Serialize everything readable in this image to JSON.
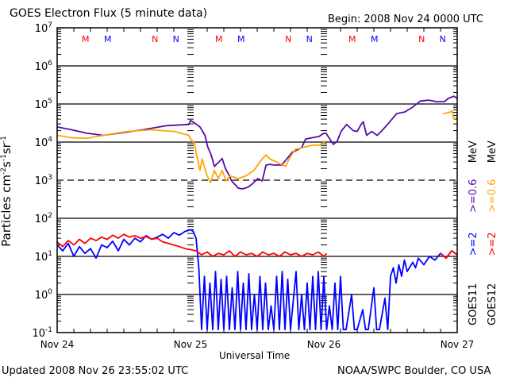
{
  "header": {
    "title": "GOES Electron Flux (5 minute data)",
    "begin": "Begin: 2008 Nov 24 0000 UTC"
  },
  "footer": {
    "updated": "Updated 2008 Nov 26 23:55:02 UTC",
    "credit": "NOAA/SWPC Boulder, CO USA"
  },
  "legend": {
    "goes11": {
      "name": "GOES11",
      "e2": ">=2",
      "e06": ">=0.6",
      "unit": "MeV"
    },
    "goes12": {
      "name": "GOES12",
      "e2": ">=2",
      "e06": ">=0.6",
      "unit": "MeV"
    }
  },
  "chart_data": {
    "type": "line",
    "title": "GOES Electron Flux (5 minute data)",
    "xlabel": "Universal Time",
    "ylabel": "Particles cm-2s-1sr-1",
    "yscale": "log",
    "ylim": [
      0.1,
      10000000
    ],
    "xlim_hours": [
      0,
      72
    ],
    "y_ticks": [
      {
        "base": "10",
        "exp": "7"
      },
      {
        "base": "10",
        "exp": "6"
      },
      {
        "base": "10",
        "exp": "5"
      },
      {
        "base": "10",
        "exp": "4"
      },
      {
        "base": "10",
        "exp": "3"
      },
      {
        "base": "10",
        "exp": "2"
      },
      {
        "base": "10",
        "exp": "1"
      },
      {
        "base": "10",
        "exp": "0"
      },
      {
        "base": "10",
        "exp": "-1"
      }
    ],
    "x_ticks": [
      {
        "hour": 0,
        "label": "Nov 24"
      },
      {
        "hour": 24,
        "label": "Nov 25"
      },
      {
        "hour": 48,
        "label": "Nov 26"
      },
      {
        "hour": 72,
        "label": "Nov 27"
      }
    ],
    "markers": [
      {
        "hour": 5.1,
        "label": "M",
        "color": "#ff0000"
      },
      {
        "hour": 9.1,
        "label": "M",
        "color": "#0000ff"
      },
      {
        "hour": 17.6,
        "label": "N",
        "color": "#ff0000"
      },
      {
        "hour": 21.4,
        "label": "N",
        "color": "#0000ff"
      },
      {
        "hour": 29.1,
        "label": "M",
        "color": "#ff0000"
      },
      {
        "hour": 33.1,
        "label": "M",
        "color": "#0000ff"
      },
      {
        "hour": 41.6,
        "label": "N",
        "color": "#ff0000"
      },
      {
        "hour": 45.4,
        "label": "N",
        "color": "#0000ff"
      },
      {
        "hour": 53.1,
        "label": "M",
        "color": "#ff0000"
      },
      {
        "hour": 57.1,
        "label": "M",
        "color": "#0000ff"
      },
      {
        "hour": 65.6,
        "label": "N",
        "color": "#ff0000"
      },
      {
        "hour": 69.4,
        "label": "N",
        "color": "#0000ff"
      }
    ],
    "series": [
      {
        "name": "GOES11 >=0.6 MeV",
        "color": "#5a0aa8",
        "points": [
          [
            0,
            25000
          ],
          [
            2.6,
            21000
          ],
          [
            5.4,
            17000
          ],
          [
            8.3,
            15000
          ],
          [
            11.1,
            17000
          ],
          [
            15.4,
            21000
          ],
          [
            19.7,
            27000
          ],
          [
            23.7,
            29000
          ],
          [
            24,
            37000
          ],
          [
            24.7,
            32000
          ],
          [
            25.7,
            25000
          ],
          [
            26.6,
            15000
          ],
          [
            27.1,
            7500
          ],
          [
            27.7,
            4700
          ],
          [
            28.3,
            2300
          ],
          [
            29,
            2900
          ],
          [
            29.7,
            3700
          ],
          [
            30.3,
            2000
          ],
          [
            30.9,
            1400
          ],
          [
            31.4,
            960
          ],
          [
            32.6,
            620
          ],
          [
            33.3,
            590
          ],
          [
            34.3,
            650
          ],
          [
            35.1,
            790
          ],
          [
            36.1,
            1100
          ],
          [
            36.9,
            960
          ],
          [
            37.6,
            2500
          ],
          [
            38.3,
            2600
          ],
          [
            39,
            2500
          ],
          [
            40.4,
            2500
          ],
          [
            41.4,
            3700
          ],
          [
            42.3,
            5400
          ],
          [
            42.9,
            5900
          ],
          [
            44,
            7100
          ],
          [
            44.7,
            12000
          ],
          [
            45.9,
            13000
          ],
          [
            47.1,
            14000
          ],
          [
            48,
            17000
          ],
          [
            48.4,
            17000
          ],
          [
            49.7,
            8700
          ],
          [
            50.4,
            10500
          ],
          [
            51.1,
            19000
          ],
          [
            52.1,
            29000
          ],
          [
            53.3,
            20000
          ],
          [
            54,
            19000
          ],
          [
            54.7,
            29000
          ],
          [
            55.1,
            34000
          ],
          [
            55.7,
            15000
          ],
          [
            56.6,
            19000
          ],
          [
            57.6,
            15000
          ],
          [
            58.6,
            21000
          ],
          [
            59.7,
            32000
          ],
          [
            61.1,
            56000
          ],
          [
            62.6,
            62000
          ],
          [
            64,
            83000
          ],
          [
            65.4,
            120000
          ],
          [
            66.9,
            126000
          ],
          [
            68.3,
            115000
          ],
          [
            69.7,
            115000
          ],
          [
            70.4,
            140000
          ],
          [
            71.4,
            160000
          ],
          [
            72,
            140000
          ]
        ]
      },
      {
        "name": "GOES12 >=0.6 MeV",
        "color": "#ffa500",
        "points": [
          [
            0,
            15000
          ],
          [
            2.6,
            13000
          ],
          [
            5.4,
            12600
          ],
          [
            8.3,
            15000
          ],
          [
            12.6,
            19000
          ],
          [
            16.9,
            21000
          ],
          [
            21.1,
            19000
          ],
          [
            23.7,
            15000
          ],
          [
            24,
            12000
          ],
          [
            24.7,
            9500
          ],
          [
            25.1,
            4600
          ],
          [
            25.7,
            1800
          ],
          [
            26.1,
            3600
          ],
          [
            26.9,
            1400
          ],
          [
            27.6,
            870
          ],
          [
            28.3,
            1800
          ],
          [
            29,
            1100
          ],
          [
            29.7,
            1800
          ],
          [
            30.4,
            960
          ],
          [
            31.1,
            1300
          ],
          [
            32.6,
            1100
          ],
          [
            34,
            1300
          ],
          [
            35.4,
            1800
          ],
          [
            36.9,
            3600
          ],
          [
            37.6,
            4600
          ],
          [
            38.3,
            3600
          ],
          [
            39.7,
            2900
          ],
          [
            41.1,
            2300
          ],
          [
            41.9,
            4000
          ],
          [
            42.9,
            6500
          ],
          [
            43.7,
            6800
          ],
          [
            44.7,
            7500
          ],
          [
            46.1,
            8300
          ],
          [
            47.6,
            8300
          ],
          [
            48.3,
            11000
          ],
          null,
          [
            69.4,
            56000
          ],
          [
            70.4,
            59000
          ],
          [
            71.1,
            65000
          ],
          [
            71.4,
            40000
          ],
          [
            72,
            44000
          ]
        ]
      },
      {
        "name": "GOES11 >=2 MeV",
        "color": "#0000ff",
        "points": [
          [
            0,
            20
          ],
          [
            1,
            14
          ],
          [
            2,
            22
          ],
          [
            3,
            10
          ],
          [
            4,
            18
          ],
          [
            5,
            12
          ],
          [
            6,
            16
          ],
          [
            7,
            9
          ],
          [
            8,
            20
          ],
          [
            9,
            17
          ],
          [
            10,
            25
          ],
          [
            11,
            14
          ],
          [
            12,
            28
          ],
          [
            13,
            20
          ],
          [
            14,
            30
          ],
          [
            15,
            24
          ],
          [
            16,
            35
          ],
          [
            17,
            28
          ],
          [
            18,
            32
          ],
          [
            19,
            38
          ],
          [
            20,
            30
          ],
          [
            21,
            42
          ],
          [
            22,
            36
          ],
          [
            23,
            45
          ],
          [
            24,
            50
          ],
          [
            24.5,
            45
          ],
          [
            25,
            30
          ],
          [
            25.5,
            5
          ],
          [
            26,
            0.12
          ],
          [
            26.5,
            3
          ],
          [
            27,
            0.12
          ],
          [
            27.5,
            2
          ],
          [
            28,
            0.12
          ],
          [
            28.5,
            4
          ],
          [
            29,
            0.12
          ],
          [
            29.5,
            2.5
          ],
          [
            30,
            0.12
          ],
          [
            30.5,
            3
          ],
          [
            31,
            0.12
          ],
          [
            31.5,
            1.5
          ],
          [
            32,
            0.12
          ],
          [
            32.5,
            4
          ],
          [
            33,
            0.12
          ],
          [
            33.5,
            2
          ],
          [
            34,
            0.12
          ],
          [
            34.5,
            3.5
          ],
          [
            35,
            0.12
          ],
          [
            35.5,
            1
          ],
          [
            36,
            0.12
          ],
          [
            36.5,
            3
          ],
          [
            37,
            0.12
          ],
          [
            37.5,
            2
          ],
          [
            38,
            0.12
          ],
          [
            38.5,
            0.5
          ],
          [
            39,
            0.12
          ],
          [
            39.5,
            3
          ],
          [
            40,
            0.12
          ],
          [
            40.5,
            4
          ],
          [
            41,
            0.12
          ],
          [
            41.5,
            2.5
          ],
          [
            42,
            0.12
          ],
          [
            43,
            4
          ],
          [
            43.5,
            0.12
          ],
          [
            44,
            1
          ],
          [
            44.5,
            0.12
          ],
          [
            45,
            2
          ],
          [
            45.5,
            0.12
          ],
          [
            46,
            3
          ],
          [
            46.5,
            0.12
          ],
          [
            47,
            4
          ],
          [
            47.5,
            0.12
          ],
          [
            48,
            3
          ],
          [
            48.5,
            0.12
          ],
          [
            49,
            0.5
          ],
          [
            49.5,
            0.12
          ],
          [
            50,
            2
          ],
          [
            50.5,
            0.12
          ],
          [
            51,
            3
          ],
          [
            51.5,
            0.12
          ],
          [
            52,
            0.12
          ],
          [
            53,
            1
          ],
          [
            53.5,
            0.12
          ],
          [
            54,
            0.12
          ],
          [
            55,
            0.4
          ],
          [
            55.5,
            0.12
          ],
          [
            56,
            0.12
          ],
          [
            57,
            1.5
          ],
          [
            57.5,
            0.12
          ],
          [
            58,
            0.12
          ],
          [
            59,
            0.8
          ],
          [
            59.5,
            0.12
          ],
          [
            60,
            3
          ],
          [
            60.5,
            5
          ],
          [
            61,
            2
          ],
          [
            61.5,
            6
          ],
          [
            62,
            3
          ],
          [
            62.5,
            8
          ],
          [
            63,
            4
          ],
          [
            64,
            7
          ],
          [
            64.5,
            5
          ],
          [
            65,
            9
          ],
          [
            66,
            6
          ],
          [
            67,
            10
          ],
          [
            68,
            8
          ],
          [
            69,
            12
          ],
          [
            70,
            9
          ],
          [
            71,
            14
          ],
          [
            72,
            11
          ]
        ]
      },
      {
        "name": "GOES12 >=2 MeV",
        "color": "#ff0000",
        "points": [
          [
            0,
            24
          ],
          [
            1,
            18
          ],
          [
            2,
            26
          ],
          [
            3,
            20
          ],
          [
            4,
            28
          ],
          [
            5,
            22
          ],
          [
            6,
            30
          ],
          [
            7,
            26
          ],
          [
            8,
            32
          ],
          [
            9,
            28
          ],
          [
            10,
            36
          ],
          [
            11,
            30
          ],
          [
            12,
            38
          ],
          [
            13,
            32
          ],
          [
            14,
            35
          ],
          [
            15,
            30
          ],
          [
            16,
            33
          ],
          [
            17,
            28
          ],
          [
            18,
            30
          ],
          [
            19,
            24
          ],
          [
            20,
            22
          ],
          [
            21,
            20
          ],
          [
            22,
            18
          ],
          [
            23,
            16
          ],
          [
            24,
            15
          ],
          [
            25,
            14
          ],
          [
            26,
            11
          ],
          [
            27,
            13
          ],
          [
            28,
            10
          ],
          [
            29,
            12
          ],
          [
            30,
            11
          ],
          [
            31,
            14
          ],
          [
            32,
            10
          ],
          [
            33,
            13
          ],
          [
            34,
            11
          ],
          [
            35,
            12
          ],
          [
            36,
            10
          ],
          [
            37,
            13
          ],
          [
            38,
            11
          ],
          [
            39,
            12
          ],
          [
            40,
            10
          ],
          [
            41,
            13
          ],
          [
            42,
            11
          ],
          [
            43,
            12
          ],
          [
            44,
            10
          ],
          [
            45,
            12
          ],
          [
            46,
            11
          ],
          [
            47,
            13
          ],
          [
            48,
            10
          ],
          [
            48.5,
            12
          ],
          null,
          [
            69,
            12
          ],
          [
            70,
            9
          ],
          [
            71,
            14
          ],
          [
            72,
            11
          ]
        ]
      }
    ]
  }
}
